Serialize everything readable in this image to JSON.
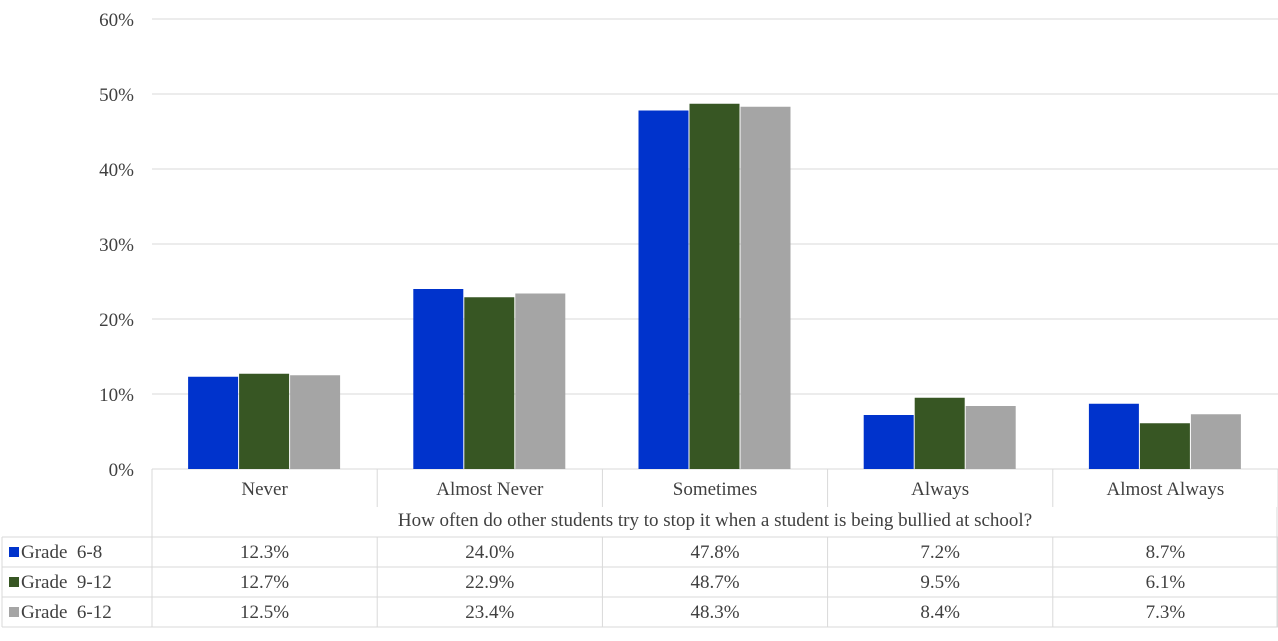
{
  "chart_data": {
    "type": "bar",
    "xlabel": "How often do other students try to stop it when a student is being bullied at school?",
    "ylabel": "",
    "ylim": [
      0,
      60
    ],
    "yticks": [
      "0%",
      "10%",
      "20%",
      "30%",
      "40%",
      "50%",
      "60%"
    ],
    "categories": [
      "Never",
      "Almost Never",
      "Sometimes",
      "Always",
      "Almost Always"
    ],
    "series": [
      {
        "name": "Grade  6-8",
        "color": "#0033cc",
        "values": [
          12.3,
          24.0,
          47.8,
          7.2,
          8.7
        ],
        "labels": [
          "12.3%",
          "24.0%",
          "47.8%",
          "7.2%",
          "8.7%"
        ]
      },
      {
        "name": "Grade  9-12",
        "color": "#375623",
        "values": [
          12.7,
          22.9,
          48.7,
          9.5,
          6.1
        ],
        "labels": [
          "12.7%",
          "22.9%",
          "48.7%",
          "9.5%",
          "6.1%"
        ]
      },
      {
        "name": "Grade  6-12",
        "color": "#a5a5a5",
        "values": [
          12.5,
          23.4,
          48.3,
          8.4,
          7.3
        ],
        "labels": [
          "12.5%",
          "23.4%",
          "48.3%",
          "8.4%",
          "7.3%"
        ]
      }
    ],
    "grid": true,
    "legend": "data-table"
  }
}
